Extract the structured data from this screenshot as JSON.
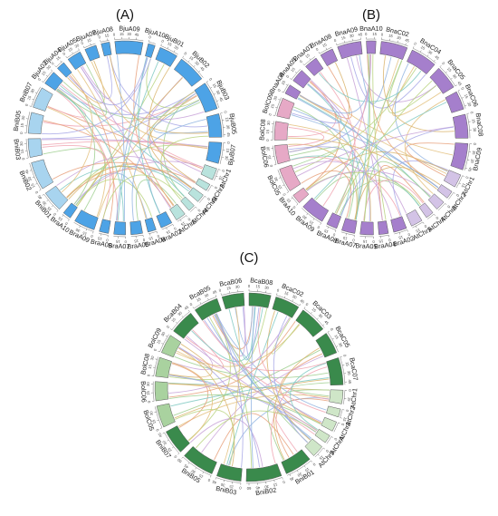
{
  "panels": [
    {
      "id": "A",
      "label": "(A)",
      "palette": {
        "dark": "#4da3e6",
        "light": "#a8d4ef",
        "pale": "#b9e3dd"
      },
      "chromosomes": [
        {
          "name": "BjuA09",
          "tone": "dark",
          "span": 60,
          "ticks": [
            "0",
            "15",
            "30",
            "45"
          ]
        },
        {
          "name": "BjuA10",
          "tone": "dark",
          "span": 15,
          "ticks": [
            "0"
          ]
        },
        {
          "name": "BjuB01",
          "tone": "dark",
          "span": 40,
          "ticks": [
            "0",
            "15",
            "30"
          ]
        },
        {
          "name": "BjuB02",
          "tone": "dark",
          "span": 60,
          "ticks": [
            "0",
            "15",
            "30",
            "45"
          ]
        },
        {
          "name": "BjuB03",
          "tone": "dark",
          "span": 60,
          "ticks": [
            "0",
            "15",
            "30",
            "45"
          ]
        },
        {
          "name": "BjuB05",
          "tone": "dark",
          "span": 50,
          "ticks": [
            "0",
            "15",
            "30",
            "45"
          ]
        },
        {
          "name": "BjuB07",
          "tone": "dark",
          "span": 45,
          "ticks": [
            "0",
            "15",
            "30"
          ]
        },
        {
          "name": "AtChr1",
          "tone": "pale",
          "span": 25,
          "ticks": [
            "0",
            "15"
          ]
        },
        {
          "name": "AtChr2",
          "tone": "pale",
          "span": 15,
          "ticks": [
            "0"
          ]
        },
        {
          "name": "AtChr3",
          "tone": "pale",
          "span": 18,
          "ticks": [
            "0"
          ]
        },
        {
          "name": "AtChr4",
          "tone": "pale",
          "span": 15,
          "ticks": [
            "0"
          ]
        },
        {
          "name": "AtChr5",
          "tone": "pale",
          "span": 22,
          "ticks": [
            "0",
            "15"
          ]
        },
        {
          "name": "BraA02",
          "tone": "dark",
          "span": 25,
          "ticks": [
            "0",
            "15"
          ]
        },
        {
          "name": "BraA04",
          "tone": "dark",
          "span": 18,
          "ticks": [
            "0",
            "15"
          ]
        },
        {
          "name": "BraA05",
          "tone": "dark",
          "span": 25,
          "ticks": [
            "0",
            "15"
          ]
        },
        {
          "name": "BraA07",
          "tone": "dark",
          "span": 25,
          "ticks": [
            "0",
            "15"
          ]
        },
        {
          "name": "BraA08",
          "tone": "dark",
          "span": 20,
          "ticks": [
            "0",
            "15"
          ]
        },
        {
          "name": "BraA09",
          "tone": "dark",
          "span": 45,
          "ticks": [
            "0",
            "15",
            "30"
          ]
        },
        {
          "name": "BraA10",
          "tone": "dark",
          "span": 18,
          "ticks": [
            "0",
            "15"
          ]
        },
        {
          "name": "BniB01",
          "tone": "light",
          "span": 45,
          "ticks": [
            "0",
            "15",
            "30",
            "45"
          ]
        },
        {
          "name": "BniB02",
          "tone": "light",
          "span": 60,
          "ticks": [
            "0",
            "15",
            "30",
            "45"
          ]
        },
        {
          "name": "BniB03",
          "tone": "light",
          "span": 40,
          "ticks": [
            "0",
            "15",
            "30"
          ]
        },
        {
          "name": "BniB05",
          "tone": "light",
          "span": 45,
          "ticks": [
            "0",
            "15",
            "30"
          ]
        },
        {
          "name": "BniB07",
          "tone": "light",
          "span": 45,
          "ticks": [
            "0",
            "15",
            "30"
          ]
        },
        {
          "name": "BjuA02",
          "tone": "dark",
          "span": 30,
          "ticks": [
            "0",
            "15",
            "30"
          ]
        },
        {
          "name": "BjuA04",
          "tone": "dark",
          "span": 18,
          "ticks": [
            "0",
            "15"
          ]
        },
        {
          "name": "BjuA05",
          "tone": "dark",
          "span": 30,
          "ticks": [
            "0",
            "15",
            "30"
          ]
        },
        {
          "name": "BjuA07",
          "tone": "dark",
          "span": 25,
          "ticks": [
            "0",
            "15"
          ]
        },
        {
          "name": "BjuA08",
          "tone": "dark",
          "span": 18,
          "ticks": [
            "0",
            "15"
          ]
        }
      ]
    },
    {
      "id": "B",
      "label": "(B)",
      "palette": {
        "dark": "#a57fcc",
        "light": "#e6a9c6",
        "pale": "#d3c3e6"
      },
      "chromosomes": [
        {
          "name": "BnaC02",
          "tone": "dark",
          "span": 50,
          "ticks": [
            "0",
            "15",
            "30",
            "45"
          ]
        },
        {
          "name": "BnaC04",
          "tone": "dark",
          "span": 50,
          "ticks": [
            "0",
            "15",
            "30",
            "45"
          ]
        },
        {
          "name": "BnaC05",
          "tone": "dark",
          "span": 45,
          "ticks": [
            "0",
            "15",
            "30",
            "45"
          ]
        },
        {
          "name": "BnaC06",
          "tone": "dark",
          "span": 35,
          "ticks": [
            "0",
            "15",
            "30"
          ]
        },
        {
          "name": "BnaC08",
          "tone": "dark",
          "span": 45,
          "ticks": [
            "0",
            "15",
            "30"
          ]
        },
        {
          "name": "BnaC09",
          "tone": "dark",
          "span": 50,
          "ticks": [
            "0",
            "15",
            "30",
            "45"
          ]
        },
        {
          "name": "AtChr1",
          "tone": "pale",
          "span": 25,
          "ticks": [
            "0",
            "15"
          ]
        },
        {
          "name": "AtChr2",
          "tone": "pale",
          "span": 15,
          "ticks": [
            "0"
          ]
        },
        {
          "name": "AtChr3",
          "tone": "pale",
          "span": 18,
          "ticks": [
            "0"
          ]
        },
        {
          "name": "AtChr4",
          "tone": "pale",
          "span": 15,
          "ticks": [
            "0"
          ]
        },
        {
          "name": "AtChr5",
          "tone": "pale",
          "span": 22,
          "ticks": [
            "0",
            "15"
          ]
        },
        {
          "name": "BraA02",
          "tone": "dark",
          "span": 25,
          "ticks": [
            "0",
            "15"
          ]
        },
        {
          "name": "BraA04",
          "tone": "dark",
          "span": 18,
          "ticks": [
            "0",
            "15"
          ]
        },
        {
          "name": "BraA05",
          "tone": "dark",
          "span": 25,
          "ticks": [
            "0",
            "15"
          ]
        },
        {
          "name": "BraA07",
          "tone": "dark",
          "span": 25,
          "ticks": [
            "0",
            "15"
          ]
        },
        {
          "name": "BraA08",
          "tone": "dark",
          "span": 20,
          "ticks": [
            "0",
            "15"
          ]
        },
        {
          "name": "BraA09",
          "tone": "dark",
          "span": 45,
          "ticks": [
            "0",
            "15",
            "30"
          ]
        },
        {
          "name": "BraA10",
          "tone": "light",
          "span": 18,
          "ticks": [
            "0",
            "15"
          ]
        },
        {
          "name": "BolC05",
          "tone": "light",
          "span": 45,
          "ticks": [
            "0",
            "15",
            "30"
          ]
        },
        {
          "name": "BolC06",
          "tone": "light",
          "span": 35,
          "ticks": [
            "0",
            "15",
            "30"
          ]
        },
        {
          "name": "BolC08",
          "tone": "light",
          "span": 35,
          "ticks": [
            "0",
            "15",
            "30"
          ]
        },
        {
          "name": "BolC09",
          "tone": "light",
          "span": 35,
          "ticks": [
            "0",
            "15",
            "30"
          ]
        },
        {
          "name": "BnaA04",
          "tone": "dark",
          "span": 18,
          "ticks": [
            "0",
            "15"
          ]
        },
        {
          "name": "BnaA05",
          "tone": "dark",
          "span": 25,
          "ticks": [
            "0",
            "15"
          ]
        },
        {
          "name": "BnaA07",
          "tone": "dark",
          "span": 25,
          "ticks": [
            "0",
            "15"
          ]
        },
        {
          "name": "BnaA08",
          "tone": "dark",
          "span": 25,
          "ticks": [
            "0",
            "15"
          ]
        },
        {
          "name": "BnaA09",
          "tone": "dark",
          "span": 45,
          "ticks": [
            "0",
            "15",
            "30",
            "45"
          ]
        },
        {
          "name": "BnaA10",
          "tone": "dark",
          "span": 18,
          "ticks": [
            "0",
            "15"
          ]
        }
      ]
    },
    {
      "id": "C",
      "label": "(C)",
      "palette": {
        "dark": "#3a8a4c",
        "light": "#a9d29f",
        "pale": "#cfe6c8"
      },
      "chromosomes": [
        {
          "name": "BcaB08",
          "tone": "dark",
          "span": 40,
          "ticks": [
            "0",
            "15",
            "30"
          ]
        },
        {
          "name": "BcaC02",
          "tone": "dark",
          "span": 45,
          "ticks": [
            "0",
            "15",
            "30",
            "45"
          ]
        },
        {
          "name": "BcaC03",
          "tone": "dark",
          "span": 50,
          "ticks": [
            "0",
            "15",
            "30",
            "45"
          ]
        },
        {
          "name": "BcaC05",
          "tone": "dark",
          "span": 40,
          "ticks": [
            "0",
            "15",
            "30"
          ]
        },
        {
          "name": "BcaC07",
          "tone": "dark",
          "span": 50,
          "ticks": [
            "0",
            "15",
            "30",
            "45"
          ]
        },
        {
          "name": "AtChr1",
          "tone": "pale",
          "span": 25,
          "ticks": [
            "0",
            "15",
            "30"
          ]
        },
        {
          "name": "AtChr2",
          "tone": "pale",
          "span": 15,
          "ticks": [
            "0",
            "15"
          ]
        },
        {
          "name": "AtChr3",
          "tone": "pale",
          "span": 18,
          "ticks": [
            "0"
          ]
        },
        {
          "name": "AtChr4",
          "tone": "pale",
          "span": 15,
          "ticks": [
            "0"
          ]
        },
        {
          "name": "AtChr5",
          "tone": "pale",
          "span": 22,
          "ticks": [
            "0",
            "15"
          ]
        },
        {
          "name": "BniB01",
          "tone": "dark",
          "span": 50,
          "ticks": [
            "0",
            "15",
            "30",
            "45"
          ]
        },
        {
          "name": "BniB02",
          "tone": "dark",
          "span": 65,
          "ticks": [
            "0",
            "15",
            "30",
            "45",
            "60"
          ]
        },
        {
          "name": "BniB03",
          "tone": "dark",
          "span": 45,
          "ticks": [
            "0",
            "15",
            "30",
            "45"
          ]
        },
        {
          "name": "BniB05",
          "tone": "dark",
          "span": 60,
          "ticks": [
            "0",
            "15",
            "30",
            "45",
            "60"
          ]
        },
        {
          "name": "BniB07",
          "tone": "dark",
          "span": 45,
          "ticks": [
            "0",
            "15",
            "30",
            "45"
          ]
        },
        {
          "name": "BolC05",
          "tone": "light",
          "span": 40,
          "ticks": [
            "0",
            "15",
            "30"
          ]
        },
        {
          "name": "BolC06",
          "tone": "light",
          "span": 35,
          "ticks": [
            "0",
            "15",
            "30"
          ]
        },
        {
          "name": "BolC08",
          "tone": "light",
          "span": 35,
          "ticks": [
            "0",
            "15",
            "30"
          ]
        },
        {
          "name": "BolC09",
          "tone": "light",
          "span": 35,
          "ticks": [
            "0",
            "15",
            "30"
          ]
        },
        {
          "name": "BcaB04",
          "tone": "dark",
          "span": 45,
          "ticks": [
            "0",
            "15",
            "30",
            "45"
          ]
        },
        {
          "name": "BcaB05",
          "tone": "dark",
          "span": 45,
          "ticks": [
            "0",
            "15",
            "30",
            "45"
          ]
        },
        {
          "name": "BcaB06",
          "tone": "dark",
          "span": 40,
          "ticks": [
            "0",
            "15",
            "30"
          ]
        }
      ]
    }
  ],
  "link_colors": [
    "#e8a07a",
    "#e3c07b",
    "#9fcf8f",
    "#8fb3e0",
    "#c8a2d8",
    "#f0a3b0",
    "#7fc9c2",
    "#d9b36a",
    "#b7d27d",
    "#a7a7e6"
  ]
}
